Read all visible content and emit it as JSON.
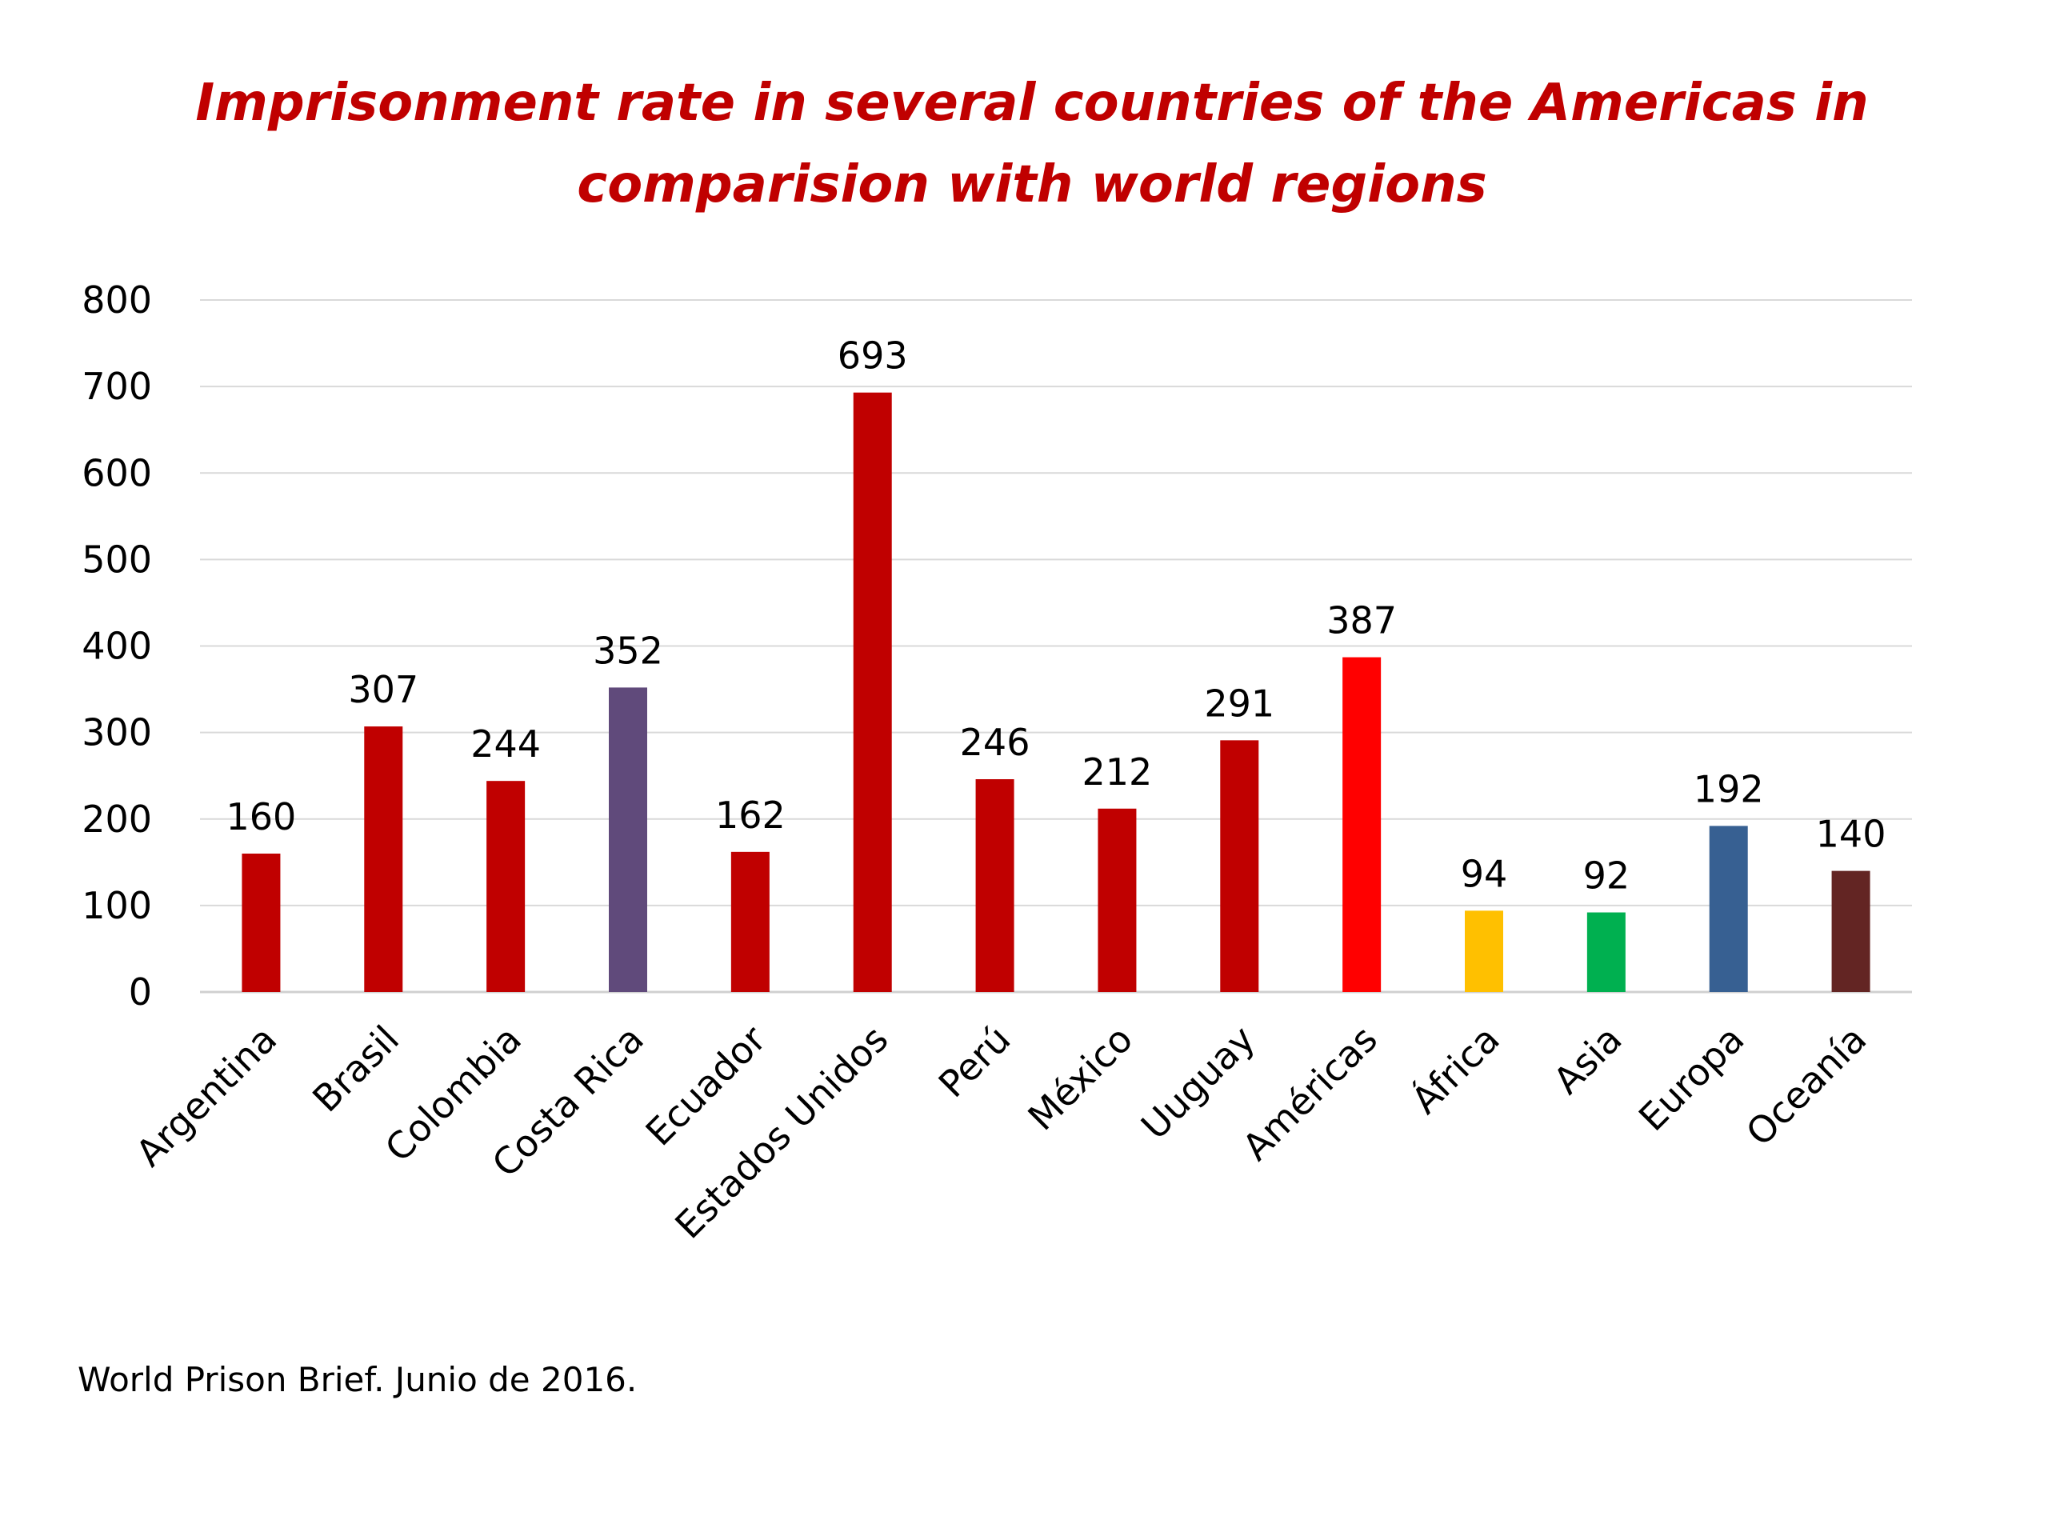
{
  "chart_data": {
    "type": "bar",
    "title": "Imprisonment rate in several countries of the Americas in comparision with world regions",
    "categories": [
      "Argentina",
      "Brasil",
      "Colombia",
      "Costa Rica",
      "Ecuador",
      "Estados Unidos",
      "Perú",
      "México",
      "Uuguay",
      "Américas",
      "África",
      "Asia",
      "Europa",
      "Oceanía"
    ],
    "values": [
      160,
      307,
      244,
      352,
      162,
      693,
      246,
      212,
      291,
      387,
      94,
      92,
      192,
      140
    ],
    "data_labels": [
      "160",
      "307",
      "244",
      "352",
      "162",
      "693",
      "246",
      "212",
      "291",
      "387",
      "94",
      "92",
      "192",
      "140"
    ],
    "colors": [
      "#c00000",
      "#c00000",
      "#c00000",
      "#604a7b",
      "#c00000",
      "#c00000",
      "#c00000",
      "#c00000",
      "#c00000",
      "#ff0000",
      "#ffc000",
      "#00b050",
      "#376092",
      "#632523"
    ],
    "xlabel": "",
    "ylabel": "",
    "ylim": [
      0,
      800
    ],
    "yticks": [
      "0",
      "100",
      "200",
      "300",
      "400",
      "500",
      "600",
      "700",
      "800"
    ],
    "grid": true,
    "legend": "none"
  },
  "footer": {
    "source": "World Prison Brief. Junio de 2016."
  }
}
